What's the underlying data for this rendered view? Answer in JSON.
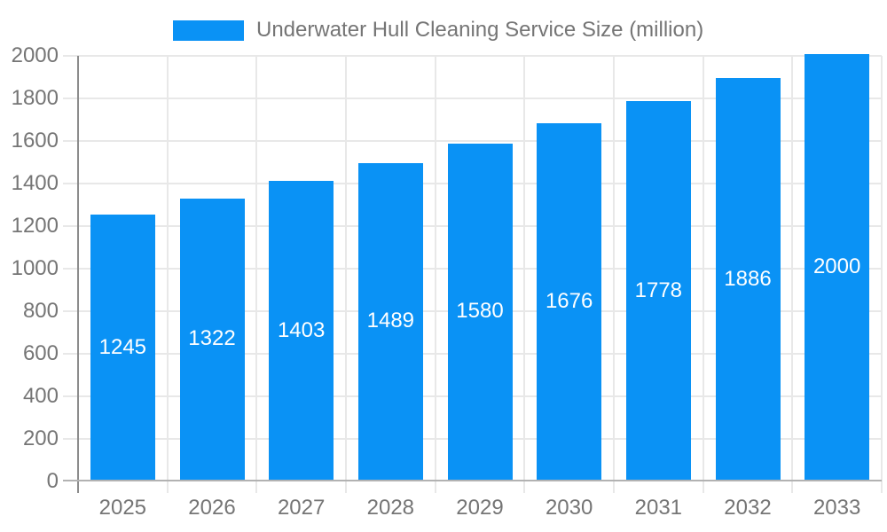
{
  "legend": {
    "label": "Underwater Hull Cleaning Service Size (million)"
  },
  "chart_data": {
    "type": "bar",
    "title": "",
    "xlabel": "",
    "ylabel": "",
    "categories": [
      "2025",
      "2026",
      "2027",
      "2028",
      "2029",
      "2030",
      "2031",
      "2032",
      "2033"
    ],
    "series": [
      {
        "name": "Underwater Hull Cleaning Service Size (million)",
        "values": [
          1245,
          1322,
          1403,
          1489,
          1580,
          1676,
          1778,
          1886,
          2000
        ]
      }
    ],
    "ylim": [
      0,
      2000
    ],
    "ytick_step": 200,
    "ytick_labels": [
      "0",
      "200",
      "400",
      "600",
      "800",
      "1000",
      "1200",
      "1400",
      "1600",
      "1800",
      "2000"
    ],
    "grid": true,
    "legend_position": "top",
    "bar_value_labels": true
  },
  "colors": {
    "bar": "#0a92f5",
    "grid": "#e8e8e8",
    "axis_line": "#8c8c8c",
    "baseline": "#b2b2b2",
    "label_text": "#757575",
    "bar_label_text": "#ffffff",
    "background": "#ffffff"
  }
}
